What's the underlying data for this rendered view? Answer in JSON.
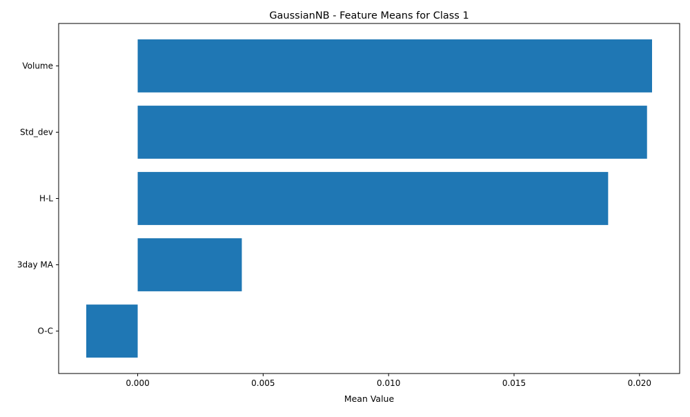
{
  "chart_data": {
    "type": "bar",
    "orientation": "horizontal",
    "title": "GaussianNB - Feature Means for Class 1",
    "xlabel": "Mean Value",
    "ylabel": "",
    "categories": [
      "O-C",
      "3day MA",
      "H-L",
      "Std_dev",
      "Volume"
    ],
    "values": [
      -0.00205,
      0.00415,
      0.01875,
      0.0203,
      0.0205
    ],
    "xlim": [
      -0.00315,
      0.0216
    ],
    "xticks": [
      0.0,
      0.005,
      0.01,
      0.015,
      0.02
    ],
    "xtick_labels": [
      "0.000",
      "0.005",
      "0.010",
      "0.015",
      "0.020"
    ],
    "bar_color": "#1f77b4",
    "grid": false,
    "legend": "none"
  }
}
